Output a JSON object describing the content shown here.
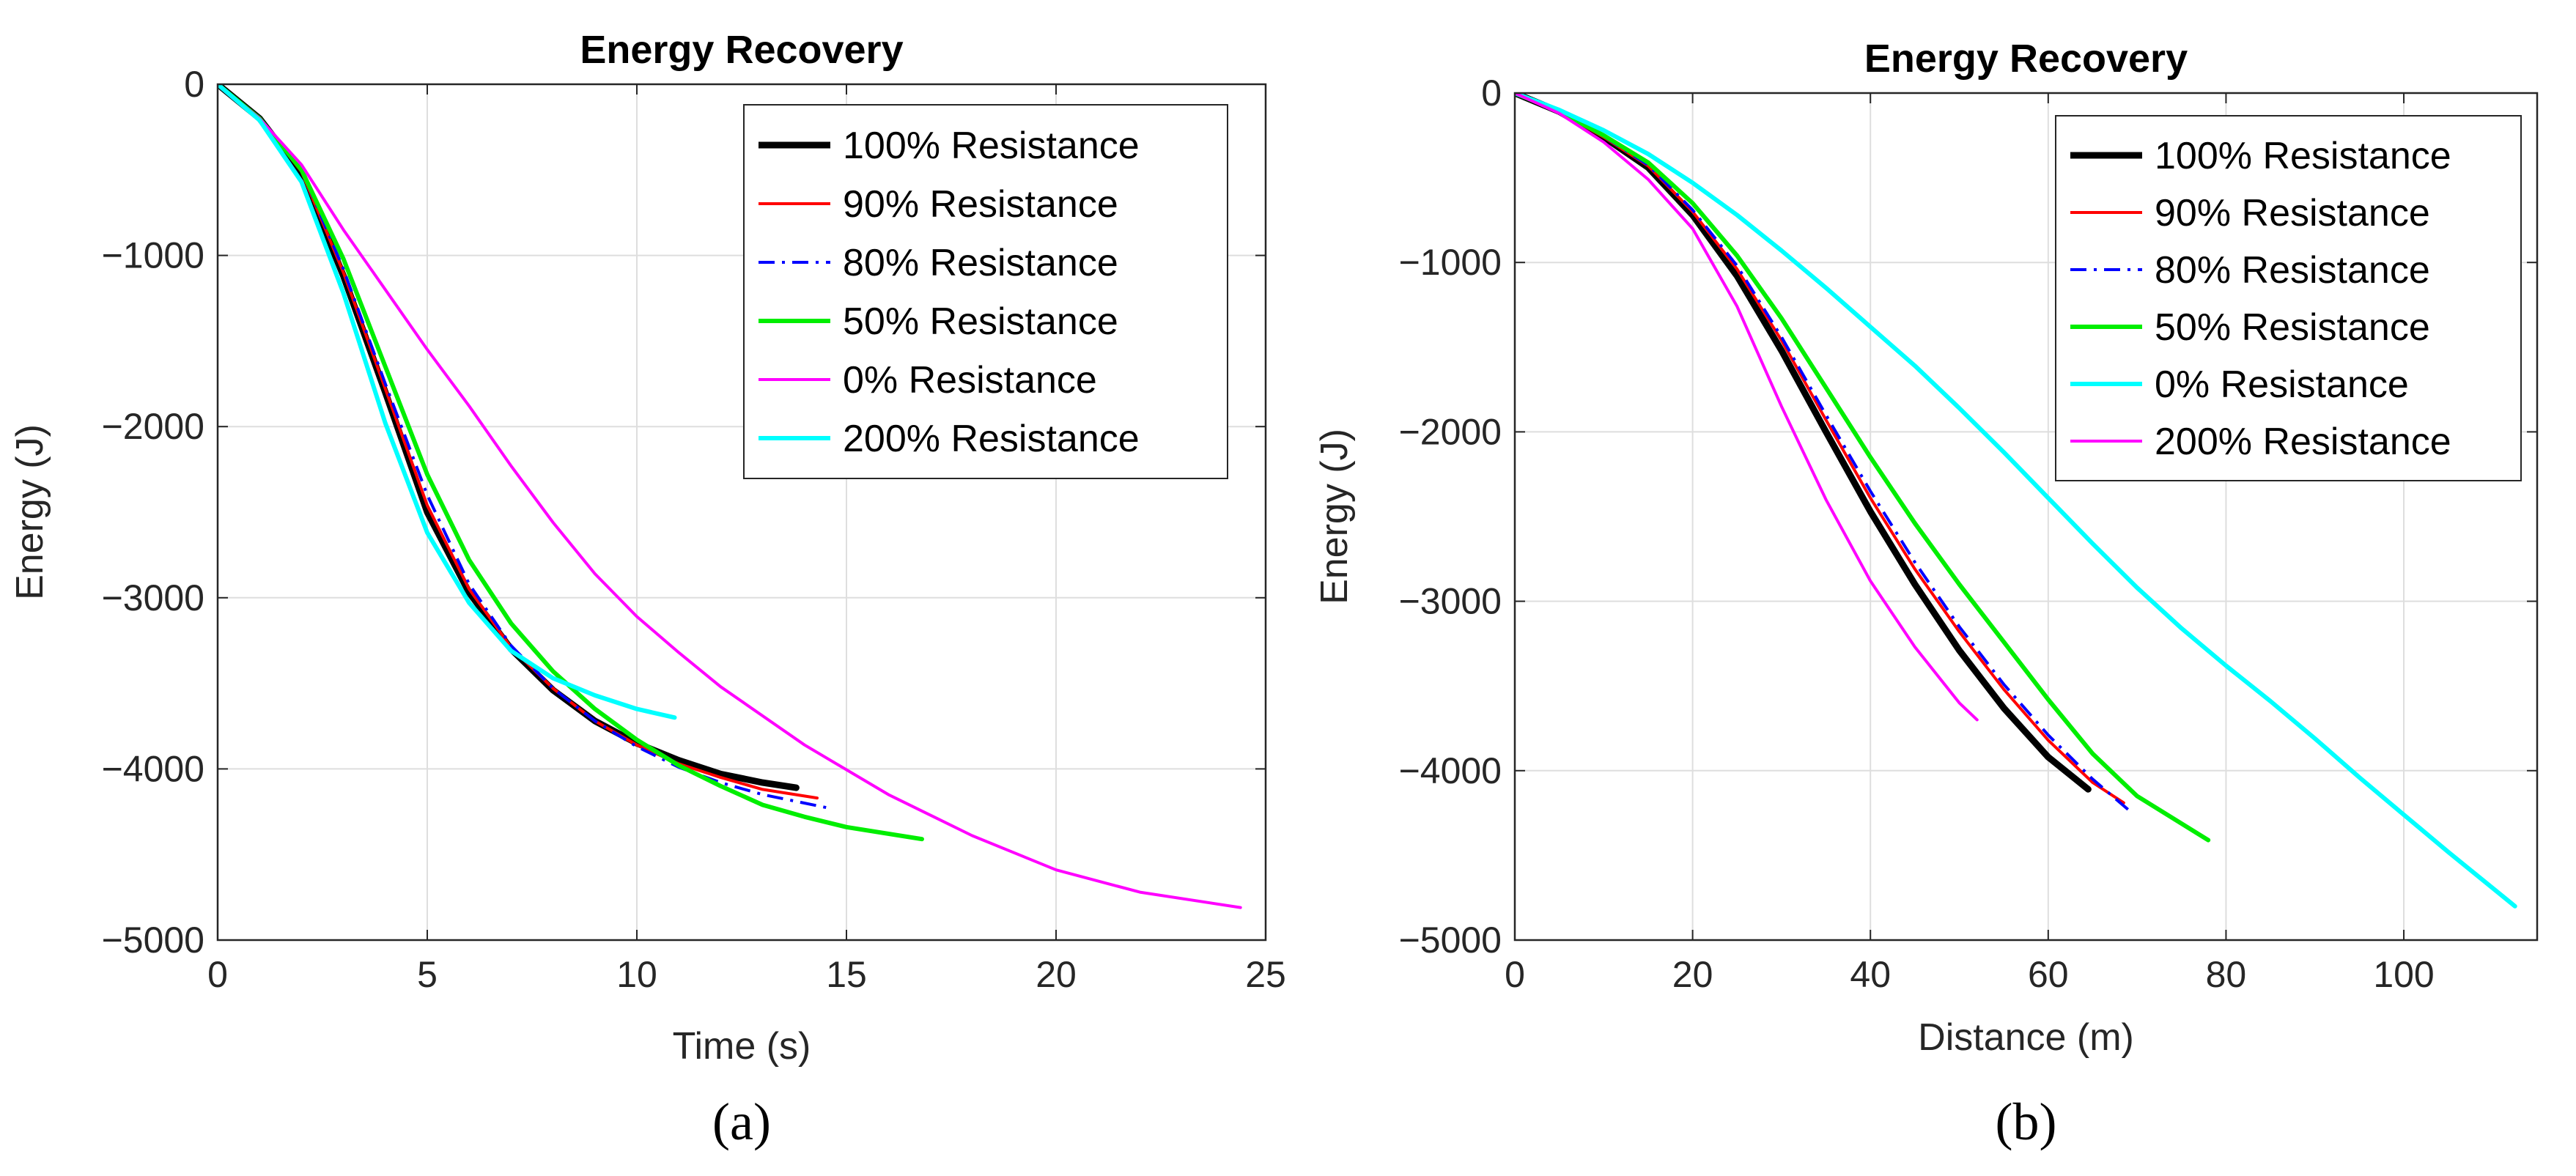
{
  "chart_data": [
    {
      "type": "line",
      "panel_label": "(a)",
      "title": "Energy Recovery",
      "xlabel": "Time (s)",
      "ylabel": "Energy (J)",
      "xlim": [
        0,
        25
      ],
      "ylim": [
        -5000,
        0
      ],
      "xticks": [
        0,
        5,
        10,
        15,
        20,
        25
      ],
      "xtick_labels": [
        "0",
        "5",
        "10",
        "15",
        "20",
        "25"
      ],
      "yticks": [
        0,
        -1000,
        -2000,
        -3000,
        -4000,
        -5000
      ],
      "ytick_labels": [
        "0",
        "−1000",
        "−2000",
        "−3000",
        "−4000",
        "−5000"
      ],
      "grid": true,
      "legend_position": "top-right",
      "series": [
        {
          "name": "100% Resistance",
          "color": "#000000",
          "style": "solid",
          "weight": "thick",
          "x": [
            0,
            1,
            2,
            3,
            4,
            5,
            6,
            7,
            8,
            9,
            10,
            11,
            12,
            13,
            13.8
          ],
          "y": [
            0,
            -200,
            -520,
            -1120,
            -1800,
            -2500,
            -2970,
            -3300,
            -3540,
            -3720,
            -3850,
            -3950,
            -4030,
            -4080,
            -4110
          ]
        },
        {
          "name": "90% Resistance",
          "color": "#ff0000",
          "style": "solid",
          "weight": "thin",
          "x": [
            0,
            1,
            2,
            3,
            4,
            5,
            6,
            7,
            8,
            9,
            10,
            11,
            12,
            13,
            14.3
          ],
          "y": [
            0,
            -200,
            -510,
            -1100,
            -1780,
            -2460,
            -2950,
            -3290,
            -3530,
            -3720,
            -3860,
            -3970,
            -4050,
            -4120,
            -4170
          ]
        },
        {
          "name": "80% Resistance",
          "color": "#0000ff",
          "style": "dashdot",
          "weight": "thin",
          "x": [
            0,
            1,
            2,
            3,
            4,
            5,
            6,
            7,
            8,
            9,
            10,
            11,
            12,
            13,
            14.6
          ],
          "y": [
            0,
            -200,
            -500,
            -1080,
            -1750,
            -2400,
            -2920,
            -3280,
            -3530,
            -3720,
            -3870,
            -3990,
            -4080,
            -4150,
            -4230
          ]
        },
        {
          "name": "50% Resistance",
          "color": "#00ee00",
          "style": "solid",
          "weight": "medium",
          "x": [
            0,
            1,
            2,
            3,
            4,
            5,
            6,
            7,
            8,
            9,
            10,
            11,
            12,
            13,
            14,
            15,
            16.8
          ],
          "y": [
            0,
            -200,
            -500,
            -1020,
            -1650,
            -2280,
            -2780,
            -3150,
            -3430,
            -3650,
            -3830,
            -3980,
            -4100,
            -4210,
            -4280,
            -4340,
            -4410
          ]
        },
        {
          "name": "0% Resistance",
          "color": "#ff00ff",
          "style": "solid",
          "weight": "thin",
          "x": [
            0,
            1,
            2,
            3,
            4,
            5,
            6,
            7,
            8,
            9,
            10,
            11,
            12,
            14,
            16,
            18,
            20,
            22,
            24.4
          ],
          "y": [
            0,
            -200,
            -470,
            -850,
            -1200,
            -1550,
            -1880,
            -2230,
            -2560,
            -2860,
            -3110,
            -3320,
            -3520,
            -3860,
            -4150,
            -4390,
            -4590,
            -4720,
            -4810
          ]
        },
        {
          "name": "200% Resistance",
          "color": "#00ffff",
          "style": "solid",
          "weight": "medium",
          "x": [
            0,
            1,
            2,
            3,
            4,
            5,
            6,
            7,
            8,
            9,
            10,
            10.9
          ],
          "y": [
            0,
            -210,
            -570,
            -1220,
            -1980,
            -2620,
            -3030,
            -3310,
            -3470,
            -3570,
            -3650,
            -3700
          ]
        }
      ]
    },
    {
      "type": "line",
      "panel_label": "(b)",
      "title": "Energy Recovery",
      "xlabel": "Distance (m)",
      "ylabel": "Energy (J)",
      "xlim": [
        0,
        115
      ],
      "ylim": [
        -5000,
        0
      ],
      "xticks": [
        0,
        20,
        40,
        60,
        80,
        100
      ],
      "xtick_labels": [
        "0",
        "20",
        "40",
        "60",
        "80",
        "100"
      ],
      "yticks": [
        0,
        -1000,
        -2000,
        -3000,
        -4000,
        -5000
      ],
      "ytick_labels": [
        "0",
        "−1000",
        "−2000",
        "−3000",
        "−4000",
        "−5000"
      ],
      "grid": true,
      "legend_position": "top-right",
      "series": [
        {
          "name": "100% Resistance",
          "color": "#000000",
          "style": "solid",
          "weight": "thick",
          "x": [
            0,
            5,
            10,
            15,
            20,
            25,
            30,
            35,
            40,
            45,
            50,
            55,
            60,
            64.5
          ],
          "y": [
            0,
            -110,
            -260,
            -440,
            -720,
            -1080,
            -1520,
            -2000,
            -2470,
            -2900,
            -3290,
            -3630,
            -3920,
            -4110
          ]
        },
        {
          "name": "90% Resistance",
          "color": "#ff0000",
          "style": "solid",
          "weight": "thin",
          "x": [
            0,
            5,
            10,
            15,
            20,
            25,
            30,
            35,
            40,
            45,
            50,
            55,
            60,
            65,
            68.5
          ],
          "y": [
            0,
            -110,
            -260,
            -430,
            -700,
            -1040,
            -1460,
            -1930,
            -2390,
            -2810,
            -3180,
            -3520,
            -3820,
            -4070,
            -4190
          ]
        },
        {
          "name": "80% Resistance",
          "color": "#0000ff",
          "style": "dashdot",
          "weight": "thin",
          "x": [
            0,
            5,
            10,
            15,
            20,
            25,
            30,
            35,
            40,
            45,
            50,
            55,
            60,
            65,
            69
          ],
          "y": [
            0,
            -110,
            -255,
            -425,
            -690,
            -1020,
            -1440,
            -1900,
            -2350,
            -2770,
            -3150,
            -3490,
            -3790,
            -4050,
            -4230
          ]
        },
        {
          "name": "50% Resistance",
          "color": "#00ee00",
          "style": "solid",
          "weight": "medium",
          "x": [
            0,
            5,
            10,
            15,
            20,
            25,
            30,
            35,
            40,
            45,
            50,
            55,
            60,
            65,
            70,
            78
          ],
          "y": [
            0,
            -110,
            -250,
            -410,
            -650,
            -960,
            -1330,
            -1740,
            -2150,
            -2540,
            -2900,
            -3240,
            -3580,
            -3900,
            -4150,
            -4410
          ]
        },
        {
          "name": "0% Resistance",
          "color": "#00ffff",
          "style": "solid",
          "weight": "medium",
          "x": [
            0,
            5,
            10,
            15,
            20,
            25,
            30,
            35,
            40,
            45,
            50,
            55,
            60,
            65,
            70,
            75,
            80,
            85,
            90,
            95,
            100,
            105,
            112.5
          ],
          "y": [
            0,
            -100,
            -220,
            -360,
            -530,
            -720,
            -930,
            -1150,
            -1380,
            -1610,
            -1860,
            -2120,
            -2390,
            -2660,
            -2920,
            -3160,
            -3380,
            -3590,
            -3810,
            -4040,
            -4260,
            -4480,
            -4800
          ]
        },
        {
          "name": "200% Resistance",
          "color": "#ff00ff",
          "style": "solid",
          "weight": "thin",
          "x": [
            0,
            5,
            10,
            15,
            20,
            25,
            30,
            35,
            40,
            45,
            50,
            52
          ],
          "y": [
            0,
            -120,
            -290,
            -510,
            -800,
            -1260,
            -1850,
            -2400,
            -2880,
            -3270,
            -3600,
            -3700
          ]
        }
      ]
    }
  ]
}
